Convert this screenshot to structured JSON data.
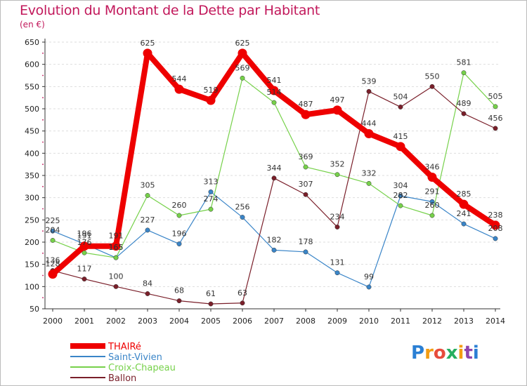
{
  "header": {
    "title": "Evolution du Montant de la Dette par Habitant",
    "unit": "(en €)"
  },
  "logo": {
    "text": "Proxiti",
    "letters": [
      {
        "ch": "P",
        "color": "#2a7fd4"
      },
      {
        "ch": "r",
        "color": "#f39c12"
      },
      {
        "ch": "o",
        "color": "#e74c3c"
      },
      {
        "ch": "x",
        "color": "#27ae60"
      },
      {
        "ch": "i",
        "color": "#f39c12"
      },
      {
        "ch": "t",
        "color": "#8e44ad"
      },
      {
        "ch": "i",
        "color": "#2a7fd4"
      }
    ]
  },
  "chart_data": {
    "type": "line",
    "title": "Evolution du Montant de la Dette par Habitant",
    "ylabel": "(en €)",
    "xlabel": "",
    "ylim": [
      50,
      650
    ],
    "yticks": [
      50,
      100,
      150,
      200,
      250,
      300,
      350,
      400,
      450,
      500,
      550,
      600,
      650
    ],
    "x": [
      "2000",
      "2001",
      "2002",
      "2003",
      "2004",
      "2005",
      "2006",
      "2007",
      "2008",
      "2009",
      "2010",
      "2011",
      "2012",
      "2013",
      "2014"
    ],
    "grid": "horizontal dashed",
    "legend": "bottom-left",
    "series": [
      {
        "name": "THAIRé",
        "color": "#ee0000",
        "emphasis": true,
        "values": [
          128,
          191,
          191,
          625,
          544,
          519,
          625,
          541,
          487,
          497,
          444,
          415,
          346,
          285,
          238
        ]
      },
      {
        "name": "Saint-Vivien",
        "color": "#3a85c8",
        "values": [
          225,
          196,
          165,
          227,
          196,
          313,
          256,
          182,
          178,
          131,
          99,
          304,
          291,
          241,
          208
        ]
      },
      {
        "name": "Croix-Chapeau",
        "color": "#76d14a",
        "values": [
          204,
          176,
          165,
          305,
          260,
          274,
          569,
          514,
          369,
          352,
          332,
          282,
          260,
          581,
          505
        ]
      },
      {
        "name": "Ballon",
        "color": "#7a1f2a",
        "values": [
          136,
          117,
          100,
          84,
          68,
          61,
          63,
          344,
          307,
          234,
          539,
          504,
          550,
          489,
          456
        ]
      }
    ]
  }
}
